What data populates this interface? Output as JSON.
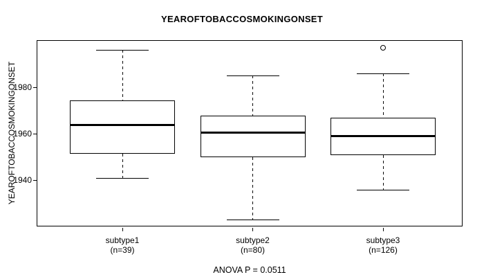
{
  "chart_data": {
    "type": "box",
    "title": "YEAROFTOBACCOSMOKINGONSET",
    "ylabel": "YEAROFTOBACCOSMOKINGONSET",
    "xlabel": "",
    "yticks": [
      1940,
      1960,
      1980
    ],
    "ylim": [
      1920,
      2000
    ],
    "grid": false,
    "annotation": "ANOVA P = 0.0511",
    "groups": [
      {
        "label": "subtype1",
        "sublabel": "(n=39)",
        "n": 39,
        "whisker_low": 1941,
        "q1": 1951.5,
        "median": 1964,
        "q3": 1974.5,
        "whisker_high": 1996,
        "outliers": []
      },
      {
        "label": "subtype2",
        "sublabel": "(n=80)",
        "n": 80,
        "whisker_low": 1923,
        "q1": 1950,
        "median": 1960.5,
        "q3": 1968,
        "whisker_high": 1985,
        "outliers": []
      },
      {
        "label": "subtype3",
        "sublabel": "(n=126)",
        "n": 126,
        "whisker_low": 1936,
        "q1": 1951,
        "median": 1959,
        "q3": 1967,
        "whisker_high": 1986,
        "outliers": [
          1997
        ]
      }
    ]
  }
}
